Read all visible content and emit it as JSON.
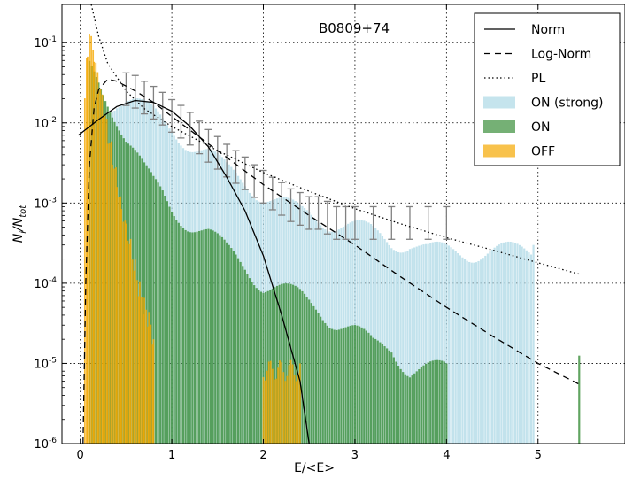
{
  "chart_data": {
    "type": "bar",
    "title": "B0809+74",
    "xlabel": "E/<E>",
    "ylabel": "N_i / N_tot",
    "ylabel_main": "N",
    "ylabel_sub_i": "i",
    "ylabel_sub_tot": "tot",
    "xlim": [
      -0.2,
      5.95
    ],
    "ylim": [
      1e-06,
      0.3
    ],
    "yscale": "log",
    "grid": true,
    "legend_position": "top-right",
    "x_ticks": [
      0,
      1,
      2,
      3,
      4,
      5
    ],
    "x_tick_labels": [
      "0",
      "1",
      "2",
      "3",
      "4",
      "5"
    ],
    "y_ticks": [
      1e-06,
      1e-05,
      0.0001,
      0.001,
      0.01,
      0.1
    ],
    "y_tick_base": "10",
    "y_tick_exponents": [
      "-6",
      "-5",
      "-4",
      "-3",
      "-2",
      "-1"
    ],
    "colors": {
      "off": "#f5a800",
      "on": "#3a8f3a",
      "on_strong": "#add8e6",
      "errorbar": "#808080",
      "curve": "#000000"
    },
    "histograms": [
      {
        "name": "ON (strong)",
        "bin_width": 0.025,
        "x": [
          0.3,
          0.4,
          0.5,
          0.6,
          0.7,
          0.8,
          0.9,
          1.0,
          1.2,
          1.4,
          1.6,
          1.8,
          2.0,
          2.2,
          2.4,
          2.6,
          2.8,
          3.0,
          3.2,
          3.4,
          3.6,
          3.8,
          4.0,
          4.2,
          4.4,
          4.6,
          4.8,
          4.95
        ],
        "values": [
          0.02,
          0.025,
          0.025,
          0.022,
          0.018,
          0.015,
          0.012,
          0.01,
          0.007,
          0.005,
          0.003,
          0.0022,
          0.0016,
          0.0012,
          0.0009,
          0.0008,
          0.0007,
          0.0006,
          0.0005,
          0.0004,
          0.0004,
          0.0003,
          0.0003,
          0.0003,
          0.0003,
          0.0003,
          0.0003,
          0.0003
        ]
      },
      {
        "name": "ON",
        "bin_width": 0.025,
        "x": [
          0.1,
          0.2,
          0.3,
          0.4,
          0.5,
          0.6,
          0.7,
          0.8,
          0.9,
          1.0,
          1.2,
          1.4,
          1.6,
          1.8,
          2.0,
          2.2,
          2.4,
          2.6,
          2.8,
          3.0,
          3.2,
          3.4,
          3.6,
          3.8,
          4.0,
          5.45
        ],
        "values": [
          0.06,
          0.04,
          0.025,
          0.015,
          0.008,
          0.005,
          0.003,
          0.002,
          0.0015,
          0.001,
          0.0007,
          0.0005,
          0.0003,
          0.0002,
          0.00012,
          0.0001,
          8e-05,
          6e-05,
          4e-05,
          3e-05,
          2e-05,
          2e-05,
          1e-05,
          1e-05,
          1e-05,
          1.25e-05
        ]
      },
      {
        "name": "OFF",
        "bin_width": 0.02,
        "x": [
          0.05,
          0.08,
          0.1,
          0.12,
          0.15,
          0.2,
          0.25,
          0.3,
          0.35,
          0.4,
          0.45,
          0.5,
          0.55,
          0.6,
          0.65,
          0.7,
          0.75,
          0.8,
          2.0,
          2.4
        ],
        "values": [
          0.02,
          0.1,
          0.14,
          0.11,
          0.07,
          0.035,
          0.018,
          0.009,
          0.005,
          0.0025,
          0.0012,
          0.0007,
          0.0004,
          0.0002,
          0.0001,
          6e-05,
          4e-05,
          2e-05,
          1e-05,
          1e-05
        ]
      }
    ],
    "errorbar_points": {
      "x": [
        0.5,
        0.6,
        0.7,
        0.8,
        0.9,
        1.0,
        1.1,
        1.2,
        1.3,
        1.4,
        1.5,
        1.6,
        1.7,
        1.8,
        1.9,
        2.0,
        2.1,
        2.2,
        2.3,
        2.4,
        2.5,
        2.6,
        2.7,
        2.8,
        2.9,
        3.0,
        3.2,
        3.4,
        3.6,
        3.8,
        4.0
      ],
      "values": [
        0.028,
        0.026,
        0.022,
        0.019,
        0.016,
        0.013,
        0.011,
        0.009,
        0.007,
        0.0055,
        0.0045,
        0.0036,
        0.003,
        0.0025,
        0.002,
        0.0017,
        0.0014,
        0.0012,
        0.001,
        0.0009,
        0.0008,
        0.0008,
        0.0007,
        0.0006,
        0.0006,
        0.0006,
        0.0006,
        0.0006,
        0.0006,
        0.0006,
        0.0006
      ]
    },
    "curves": [
      {
        "name": "Norm",
        "style": "solid",
        "x": [
          -0.02,
          0.2,
          0.4,
          0.6,
          0.8,
          1.0,
          1.2,
          1.4,
          1.6,
          1.8,
          2.0,
          2.2,
          2.4,
          2.5
        ],
        "values": [
          0.007,
          0.011,
          0.016,
          0.019,
          0.018,
          0.014,
          0.009,
          0.005,
          0.0021,
          0.0008,
          0.00022,
          4e-05,
          6e-06,
          1e-06
        ]
      },
      {
        "name": "Log-Norm",
        "style": "dashed",
        "x": [
          0.03,
          0.06,
          0.1,
          0.15,
          0.2,
          0.3,
          0.4,
          0.6,
          0.8,
          1.0,
          1.5,
          2.0,
          2.5,
          3.0,
          3.5,
          4.0,
          4.5,
          5.0,
          5.45
        ],
        "values": [
          1e-06,
          0.0001,
          0.003,
          0.015,
          0.026,
          0.035,
          0.033,
          0.025,
          0.018,
          0.012,
          0.0045,
          0.0017,
          0.0007,
          0.0003,
          0.00012,
          5e-05,
          2.2e-05,
          1e-05,
          5.5e-06
        ]
      },
      {
        "name": "PL",
        "style": "dotted",
        "x": [
          0.12,
          0.2,
          0.3,
          0.5,
          0.7,
          1.0,
          1.5,
          2.0,
          2.5,
          3.0,
          3.5,
          4.0,
          4.5,
          5.0,
          5.45
        ],
        "values": [
          0.3,
          0.12,
          0.055,
          0.025,
          0.015,
          0.009,
          0.0045,
          0.0024,
          0.0014,
          0.00085,
          0.00055,
          0.00037,
          0.00026,
          0.00018,
          0.00013
        ]
      }
    ],
    "legend": [
      {
        "label": "Norm",
        "kind": "line",
        "dash": "solid"
      },
      {
        "label": "Log-Norm",
        "kind": "line",
        "dash": "dashed"
      },
      {
        "label": "PL",
        "kind": "line",
        "dash": "dotted"
      },
      {
        "label": "ON (strong)",
        "kind": "patch",
        "color": "#add8e6"
      },
      {
        "label": "ON",
        "kind": "patch",
        "color": "#3a8f3a"
      },
      {
        "label": "OFF",
        "kind": "patch",
        "color": "#f5a800"
      }
    ]
  }
}
